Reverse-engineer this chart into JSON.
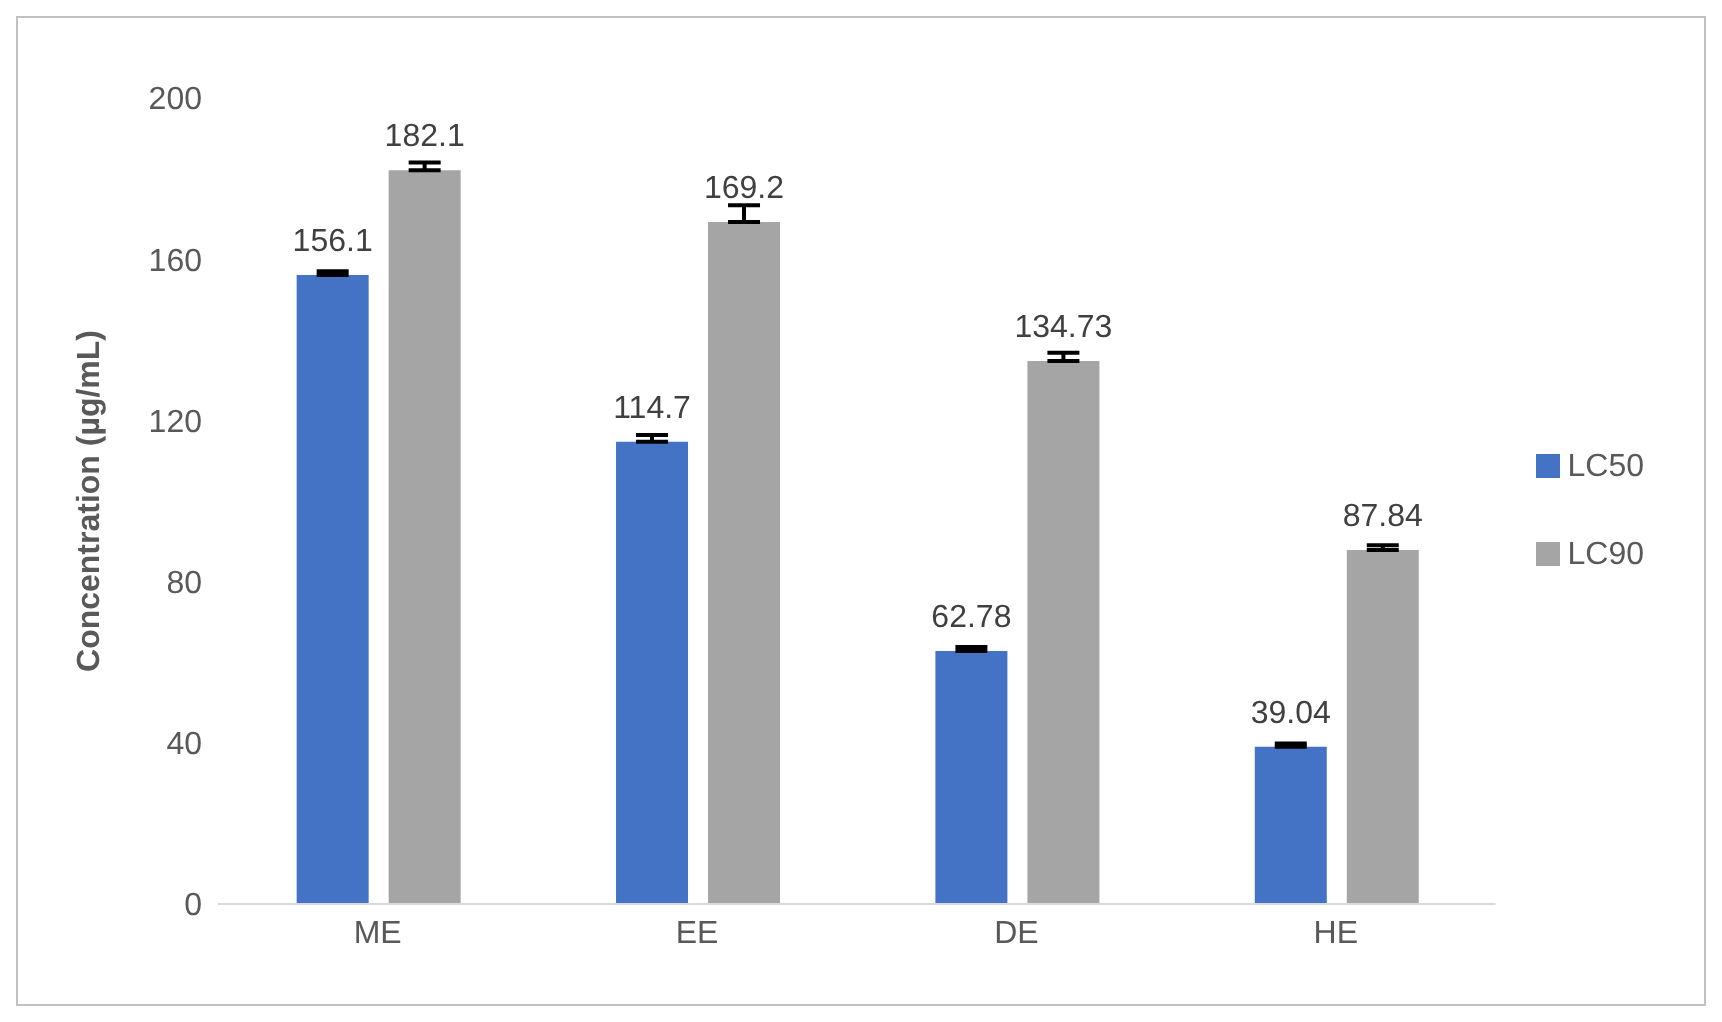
{
  "chart_data": {
    "type": "bar",
    "ylabel": "Concentration (µg/mL)",
    "categories": [
      "ME",
      "EE",
      "DE",
      "HE"
    ],
    "series": [
      {
        "name": "LC50",
        "color": "#4472c4",
        "values": [
          156.1,
          114.7,
          62.78,
          39.04
        ],
        "errors": [
          [
            156.1,
            157.0
          ],
          [
            114.7,
            116.4
          ],
          [
            62.78,
            63.8
          ],
          [
            39.04,
            39.8
          ]
        ]
      },
      {
        "name": "LC90",
        "color": "#a5a5a5",
        "values": [
          182.1,
          169.2,
          134.73,
          87.84
        ],
        "errors": [
          [
            182.1,
            184.0
          ],
          [
            169.2,
            173.4
          ],
          [
            134.73,
            136.8
          ],
          [
            87.84,
            89.0
          ]
        ]
      }
    ],
    "ylim": [
      0,
      200
    ],
    "yticks": [
      0,
      40,
      80,
      120,
      160,
      200
    ],
    "grid": false,
    "legend": "right",
    "data_labels": true
  }
}
